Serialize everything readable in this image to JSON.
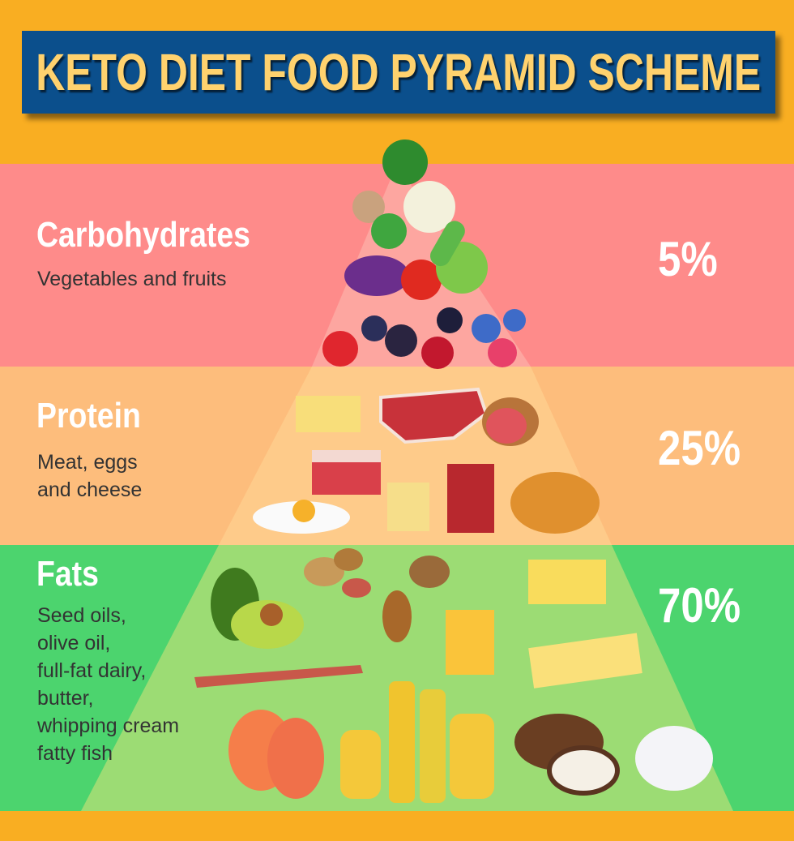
{
  "title": "KETO DIET FOOD PYRAMID SCHEME",
  "colors": {
    "background": "#F9AE22",
    "title_box": "#0B4F8C",
    "title_text": "#FFD26E",
    "carbohydrates": "#FE8B8A",
    "protein": "#FDBD7C",
    "fats": "#4CD46E"
  },
  "tiers": [
    {
      "name": "Carbohydrates",
      "description": [
        "Vegetables and fruits"
      ],
      "percent": "5%",
      "value": 5,
      "icons": [
        "broccoli",
        "cauliflower",
        "mushroom",
        "eggplant",
        "tomato",
        "cabbage",
        "strawberry",
        "blackberry",
        "blueberry",
        "raspberry"
      ]
    },
    {
      "name": "Protein",
      "description": [
        "Meat, eggs",
        "and cheese"
      ],
      "percent": "25%",
      "value": 25,
      "icons": [
        "cheese-slices",
        "steak",
        "ham",
        "pork",
        "fried-egg",
        "cheese",
        "bacon-block",
        "chicken"
      ]
    },
    {
      "name": "Fats",
      "description": [
        "Seed oils,",
        "olive oil,",
        "full-fat dairy,",
        "butter,",
        "whipping cream",
        "fatty fish"
      ],
      "percent": "70%",
      "value": 70,
      "icons": [
        "avocado",
        "nuts",
        "walnut",
        "almond",
        "butter",
        "bacon",
        "salmon",
        "oil-bottles",
        "coconut",
        "cream"
      ]
    }
  ]
}
